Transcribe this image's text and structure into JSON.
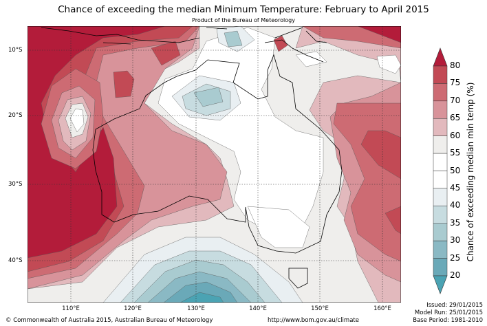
{
  "title": "Chance of exceeding the median Minimum Temperature: February to April 2015",
  "subtitle": "Product of the Bureau of Meteorology",
  "map": {
    "lon_ticks": [
      "110°E",
      "120°E",
      "130°E",
      "140°E",
      "150°E",
      "160°E"
    ],
    "lat_ticks": [
      "10°S",
      "20°S",
      "30°S",
      "40°S"
    ]
  },
  "colorbar": {
    "label": "Chance of exceeding median min temp (%)",
    "ticks": [
      "80",
      "75",
      "70",
      "65",
      "60",
      "55",
      "50",
      "45",
      "40",
      "35",
      "30",
      "25",
      "20"
    ],
    "colors": [
      "#b31c3a",
      "#c24a55",
      "#cd6b73",
      "#d8939a",
      "#e2b9bd",
      "#efeeec",
      "#ffffff",
      "#ffffff",
      "#e9eff2",
      "#c7dce0",
      "#a9cbd0",
      "#8ab9c4",
      "#6aa9b8",
      "#4ba3b3"
    ]
  },
  "footer": {
    "copyright": "© Commonwealth of Australia 2015, Australian Bureau of Meteorology",
    "url": "http://www.bom.gov.au/climate",
    "issued": "Issued: 29/01/2015",
    "model_run": "Model Run: 25/01/2015",
    "base_period": "Base Period: 1981-2010"
  }
}
